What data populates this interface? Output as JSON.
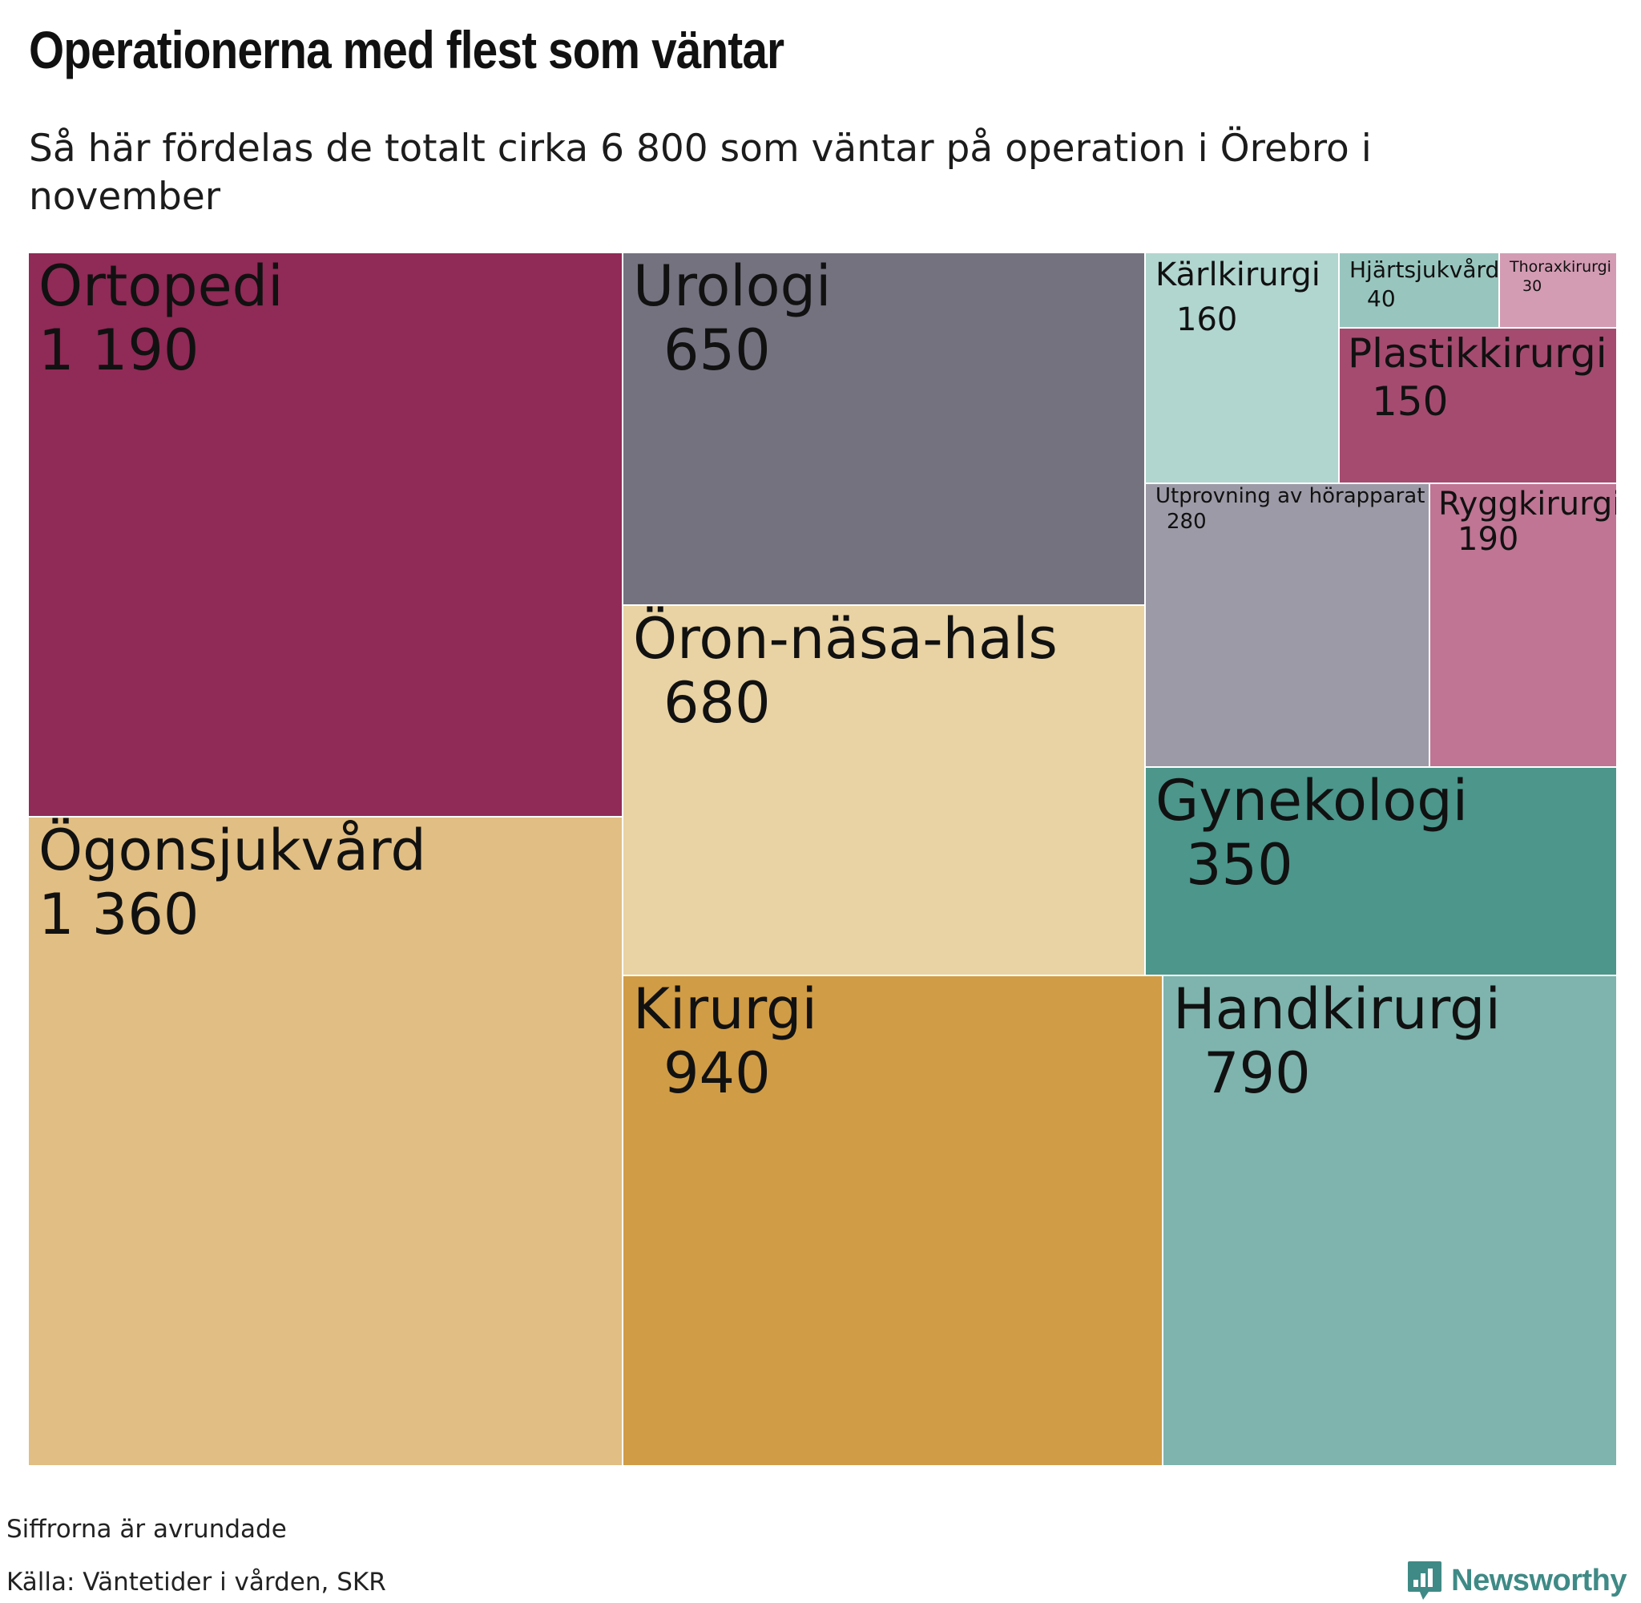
{
  "title": "Operationerna med flest som väntar",
  "subtitle": "Så här fördelas de totalt cirka 6 800 som väntar på operation i Örebro i november",
  "footnote": "Siffrorna är avrundade",
  "source": "Källa: Väntetider i vården, SKR",
  "brand": "Newsworthy",
  "brand_icon": "newsworthy-chart-bubble-icon",
  "brand_color": "#3f8a86",
  "chart_data": {
    "type": "treemap",
    "total_label": "6 800",
    "items": [
      {
        "label": "Ortopedi",
        "value": 1190,
        "value_text": "1 190",
        "color": "#902a56"
      },
      {
        "label": "Ögonsjukvård",
        "value": 1360,
        "value_text": "1 360",
        "color": "#e1be83"
      },
      {
        "label": "Urologi",
        "value": 650,
        "value_text": "650",
        "color": "#74727f"
      },
      {
        "label": "Öron-näsa-hals",
        "value": 680,
        "value_text": "680",
        "color": "#e9d2a3"
      },
      {
        "label": "Kirurgi",
        "value": 940,
        "value_text": "940",
        "color": "#d09c46"
      },
      {
        "label": "Kärlkirurgi",
        "value": 160,
        "value_text": "160",
        "color": "#b1d5cf"
      },
      {
        "label": "Hjärtsjukvård",
        "value": 40,
        "value_text": "40",
        "color": "#98c6bf"
      },
      {
        "label": "Thoraxkirurgi",
        "value": 30,
        "value_text": "30",
        "color": "#d39cb3"
      },
      {
        "label": "Plastikkirurgi",
        "value": 150,
        "value_text": "150",
        "color": "#a54b70"
      },
      {
        "label": "Utprovning av hörapparat",
        "value": 280,
        "value_text": "280",
        "color": "#9c9aa6"
      },
      {
        "label": "Ryggkirurgi",
        "value": 190,
        "value_text": "190",
        "color": "#bf7593"
      },
      {
        "label": "Gynekologi",
        "value": 350,
        "value_text": "350",
        "color": "#4c968b"
      },
      {
        "label": "Handkirurgi",
        "value": 790,
        "value_text": "790",
        "color": "#7eb4ad"
      }
    ]
  }
}
